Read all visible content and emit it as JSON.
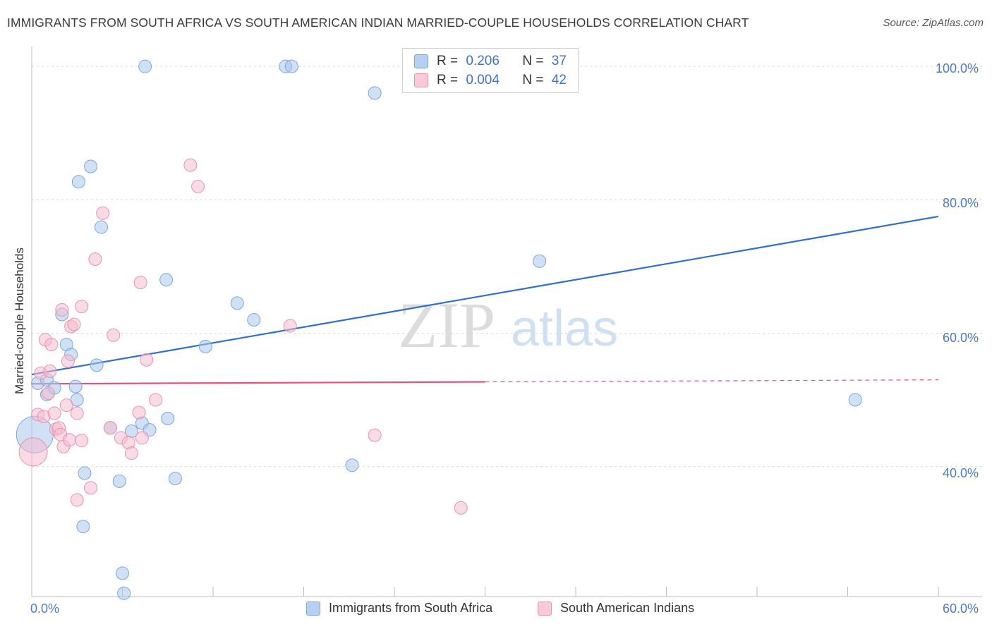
{
  "title": "IMMIGRANTS FROM SOUTH AFRICA VS SOUTH AMERICAN INDIAN MARRIED-COUPLE HOUSEHOLDS CORRELATION CHART",
  "source": "Source: ZipAtlas.com",
  "watermark": {
    "zip": "ZIP",
    "atlas": "atlas"
  },
  "legend": {
    "series1": {
      "r_label": "R = ",
      "r_value": "0.206",
      "n_label": "N = ",
      "n_value": "37"
    },
    "series2": {
      "r_label": "R = ",
      "r_value": "0.004",
      "n_label": "N = ",
      "n_value": "42"
    }
  },
  "axis_labels": {
    "x_min": "0.0%",
    "x_max": "60.0%",
    "y_ticks": [
      "100.0%",
      "80.0%",
      "60.0%",
      "40.0%"
    ]
  },
  "chart_data": {
    "type": "scatter",
    "title": "IMMIGRANTS FROM SOUTH AFRICA VS SOUTH AMERICAN INDIAN MARRIED-COUPLE HOUSEHOLDS CORRELATION CHART",
    "xlabel": "",
    "ylabel": "Married-couple Households",
    "xlim": [
      0,
      60
    ],
    "ylim": [
      20.5,
      101.5
    ],
    "y_gridlines": [
      40,
      60,
      80,
      100
    ],
    "series": [
      {
        "name": "Immigrants from South Africa",
        "color": "#a9c8ee",
        "edge": "#7aa6dc",
        "trend": {
          "x0": 0,
          "y0": 53.8,
          "x1": 60,
          "y1": 77.5,
          "color": "#2f6fce"
        },
        "points": [
          [
            0.2,
            44.8,
            26
          ],
          [
            0.4,
            52.5,
            9
          ],
          [
            1.0,
            53.0,
            9
          ],
          [
            1.0,
            50.8,
            9
          ],
          [
            1.5,
            51.8,
            9
          ],
          [
            2.0,
            62.8,
            9
          ],
          [
            2.3,
            58.3,
            9
          ],
          [
            2.6,
            56.8,
            9
          ],
          [
            2.9,
            52.0,
            9
          ],
          [
            3.0,
            50.0,
            9
          ],
          [
            3.1,
            82.7,
            9
          ],
          [
            3.4,
            31.0,
            9
          ],
          [
            3.5,
            39.0,
            9
          ],
          [
            3.9,
            85.0,
            9
          ],
          [
            4.3,
            55.2,
            9
          ],
          [
            4.6,
            75.9,
            9
          ],
          [
            5.2,
            45.8,
            9
          ],
          [
            5.8,
            37.8,
            9
          ],
          [
            6.0,
            24.0,
            9
          ],
          [
            6.1,
            21.0,
            9
          ],
          [
            6.6,
            45.3,
            9
          ],
          [
            7.3,
            46.5,
            9
          ],
          [
            7.5,
            100.0,
            9
          ],
          [
            7.8,
            45.5,
            9
          ],
          [
            8.9,
            68.0,
            9
          ],
          [
            9.0,
            47.2,
            9
          ],
          [
            9.5,
            38.2,
            9
          ],
          [
            11.5,
            58.0,
            9
          ],
          [
            13.6,
            64.5,
            9
          ],
          [
            14.7,
            62.0,
            9
          ],
          [
            16.8,
            100.0,
            9
          ],
          [
            17.2,
            100.0,
            9
          ],
          [
            21.2,
            40.2,
            9
          ],
          [
            22.7,
            96.0,
            9
          ],
          [
            33.6,
            70.8,
            9
          ],
          [
            54.5,
            50.0,
            9
          ]
        ]
      },
      {
        "name": "South American Indians",
        "color": "#f6bccd",
        "edge": "#e993ae",
        "trend": {
          "x0": 0,
          "y0": 52.4,
          "x1": 30,
          "y1": 52.7,
          "dash_to_x": 60,
          "dash_to_y": 53.0,
          "color": "#e0557e"
        },
        "points": [
          [
            0.1,
            42.2,
            20
          ],
          [
            0.4,
            47.8,
            9
          ],
          [
            0.6,
            54.0,
            9
          ],
          [
            0.8,
            47.5,
            9
          ],
          [
            0.9,
            59.0,
            9
          ],
          [
            1.1,
            51.0,
            9
          ],
          [
            1.2,
            54.3,
            9
          ],
          [
            1.3,
            58.3,
            9
          ],
          [
            1.5,
            48.0,
            9
          ],
          [
            1.6,
            45.6,
            9
          ],
          [
            1.8,
            45.8,
            9
          ],
          [
            1.9,
            44.8,
            9
          ],
          [
            2.0,
            63.5,
            9
          ],
          [
            2.1,
            43.0,
            9
          ],
          [
            2.3,
            49.2,
            9
          ],
          [
            2.4,
            55.8,
            9
          ],
          [
            2.5,
            44.0,
            9
          ],
          [
            2.6,
            61.0,
            9
          ],
          [
            2.8,
            61.3,
            9
          ],
          [
            3.0,
            48.0,
            9
          ],
          [
            3.0,
            35.0,
            9
          ],
          [
            3.3,
            64.0,
            9
          ],
          [
            3.3,
            43.9,
            9
          ],
          [
            3.9,
            36.8,
            9
          ],
          [
            4.2,
            71.1,
            9
          ],
          [
            4.7,
            78.0,
            9
          ],
          [
            5.2,
            45.8,
            9
          ],
          [
            5.4,
            59.7,
            9
          ],
          [
            5.9,
            44.3,
            9
          ],
          [
            6.4,
            43.6,
            9
          ],
          [
            6.6,
            42.0,
            9
          ],
          [
            7.1,
            48.1,
            9
          ],
          [
            7.3,
            44.3,
            9
          ],
          [
            7.2,
            67.6,
            9
          ],
          [
            7.6,
            56.0,
            9
          ],
          [
            8.2,
            50.0,
            9
          ],
          [
            10.5,
            85.2,
            9
          ],
          [
            11.0,
            82.0,
            9
          ],
          [
            17.1,
            61.1,
            9
          ],
          [
            22.7,
            44.7,
            9
          ],
          [
            28.4,
            33.8,
            9
          ]
        ]
      }
    ]
  }
}
